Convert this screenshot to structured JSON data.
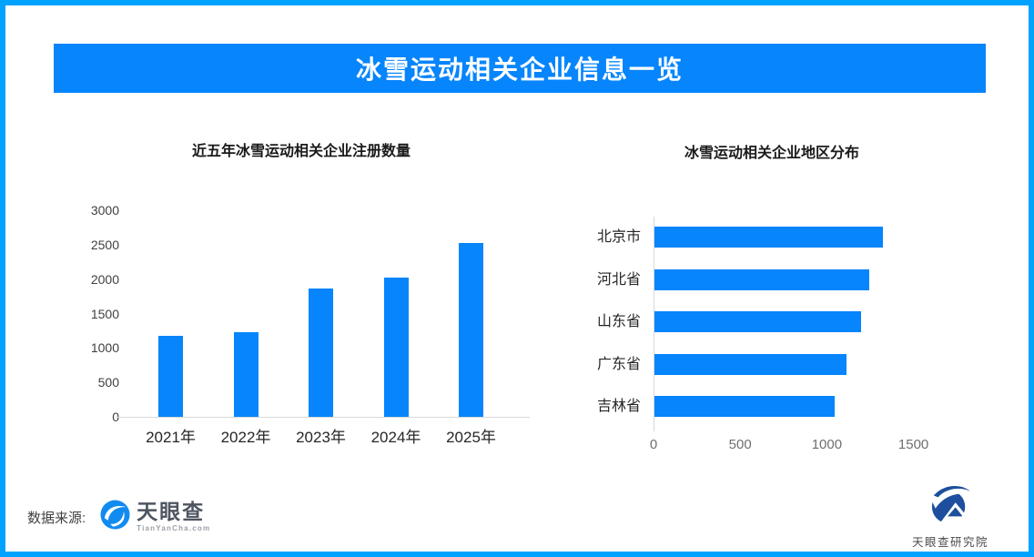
{
  "page": {
    "border_color": "#00a2ff",
    "background": "#ffffff",
    "accent_color": "#0685fc"
  },
  "header": {
    "title": "冰雪运动相关企业信息一览",
    "banner_color": "#0685fc",
    "text_color": "#ffffff"
  },
  "chart_data": [
    {
      "type": "bar",
      "title": "近五年冰雪运动相关企业注册数量",
      "categories": [
        "2021年",
        "2022年",
        "2023年",
        "2024年",
        "2025年"
      ],
      "values": [
        1180,
        1230,
        1870,
        2020,
        2520
      ],
      "y_ticks": [
        0,
        500,
        1000,
        1500,
        2000,
        2500,
        3000
      ],
      "ylim": [
        0,
        3000
      ],
      "xlabel": "",
      "ylabel": "",
      "bar_color": "#0685fc",
      "grid": false,
      "legend": false
    },
    {
      "type": "bar-horizontal",
      "title": "冰雪运动相关企业地区分布",
      "categories": [
        "北京市",
        "河北省",
        "山东省",
        "广东省",
        "吉林省"
      ],
      "values": [
        1320,
        1240,
        1190,
        1110,
        1040
      ],
      "x_ticks": [
        0,
        500,
        1000,
        1500
      ],
      "xlim": [
        0,
        1875
      ],
      "xlabel": "",
      "ylabel": "",
      "bar_color": "#0685fc",
      "grid": false,
      "legend": false
    }
  ],
  "footer": {
    "source_label": "数据来源:",
    "tianyancha_logo": {
      "name": "天眼查",
      "domain": "TianYanCha.com",
      "circle_color": "#128bf1"
    },
    "research_logo": {
      "name": "天眼查研究院",
      "icon_color": "#1d4f9e"
    }
  }
}
